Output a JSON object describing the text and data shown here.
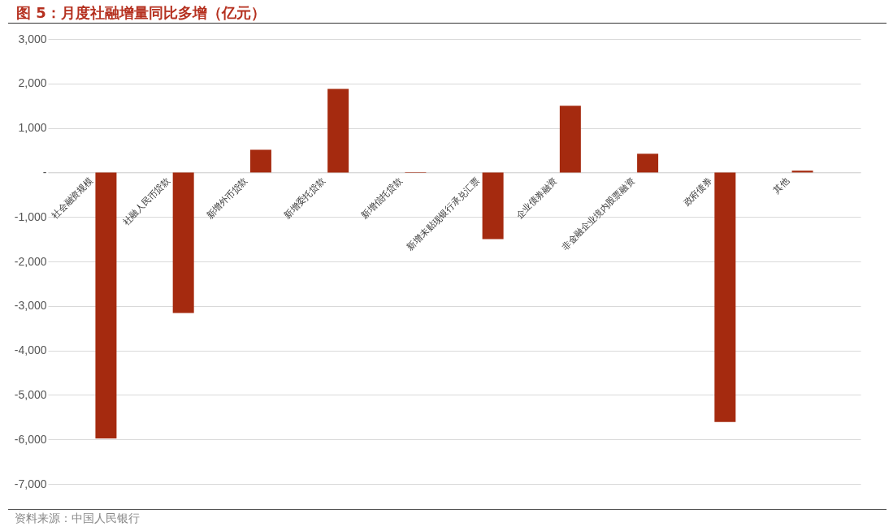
{
  "chart_data": {
    "type": "bar",
    "title": "图 5：月度社融增量同比多增（亿元）",
    "categories": [
      "社会融资规模",
      "社融人民币贷款",
      "新增外币贷款",
      "新增委托贷款",
      "新增信托贷款",
      "新增未贴现银行承兑汇票",
      "企业债券融资",
      "非金融企业境内股票融资",
      "政府债券",
      "其他"
    ],
    "values": [
      -5980,
      -3160,
      510,
      1880,
      -10,
      -1500,
      1500,
      420,
      -5610,
      40
    ],
    "color": "#a52a0f",
    "ylim": [
      -7000,
      3000
    ],
    "yticks": [
      {
        "value": 3000,
        "label": "3,000"
      },
      {
        "value": 2000,
        "label": "2,000"
      },
      {
        "value": 1000,
        "label": "1,000"
      },
      {
        "value": 0,
        "label": "-"
      },
      {
        "value": -1000,
        "label": "-1,000"
      },
      {
        "value": -2000,
        "label": "-2,000"
      },
      {
        "value": -3000,
        "label": "-3,000"
      },
      {
        "value": -4000,
        "label": "-4,000"
      },
      {
        "value": -5000,
        "label": "-5,000"
      },
      {
        "value": -6000,
        "label": "-6,000"
      },
      {
        "value": -7000,
        "label": "-7,000"
      }
    ],
    "grid": "y",
    "annotations": [
      "资料来源：中国人民银行"
    ]
  }
}
